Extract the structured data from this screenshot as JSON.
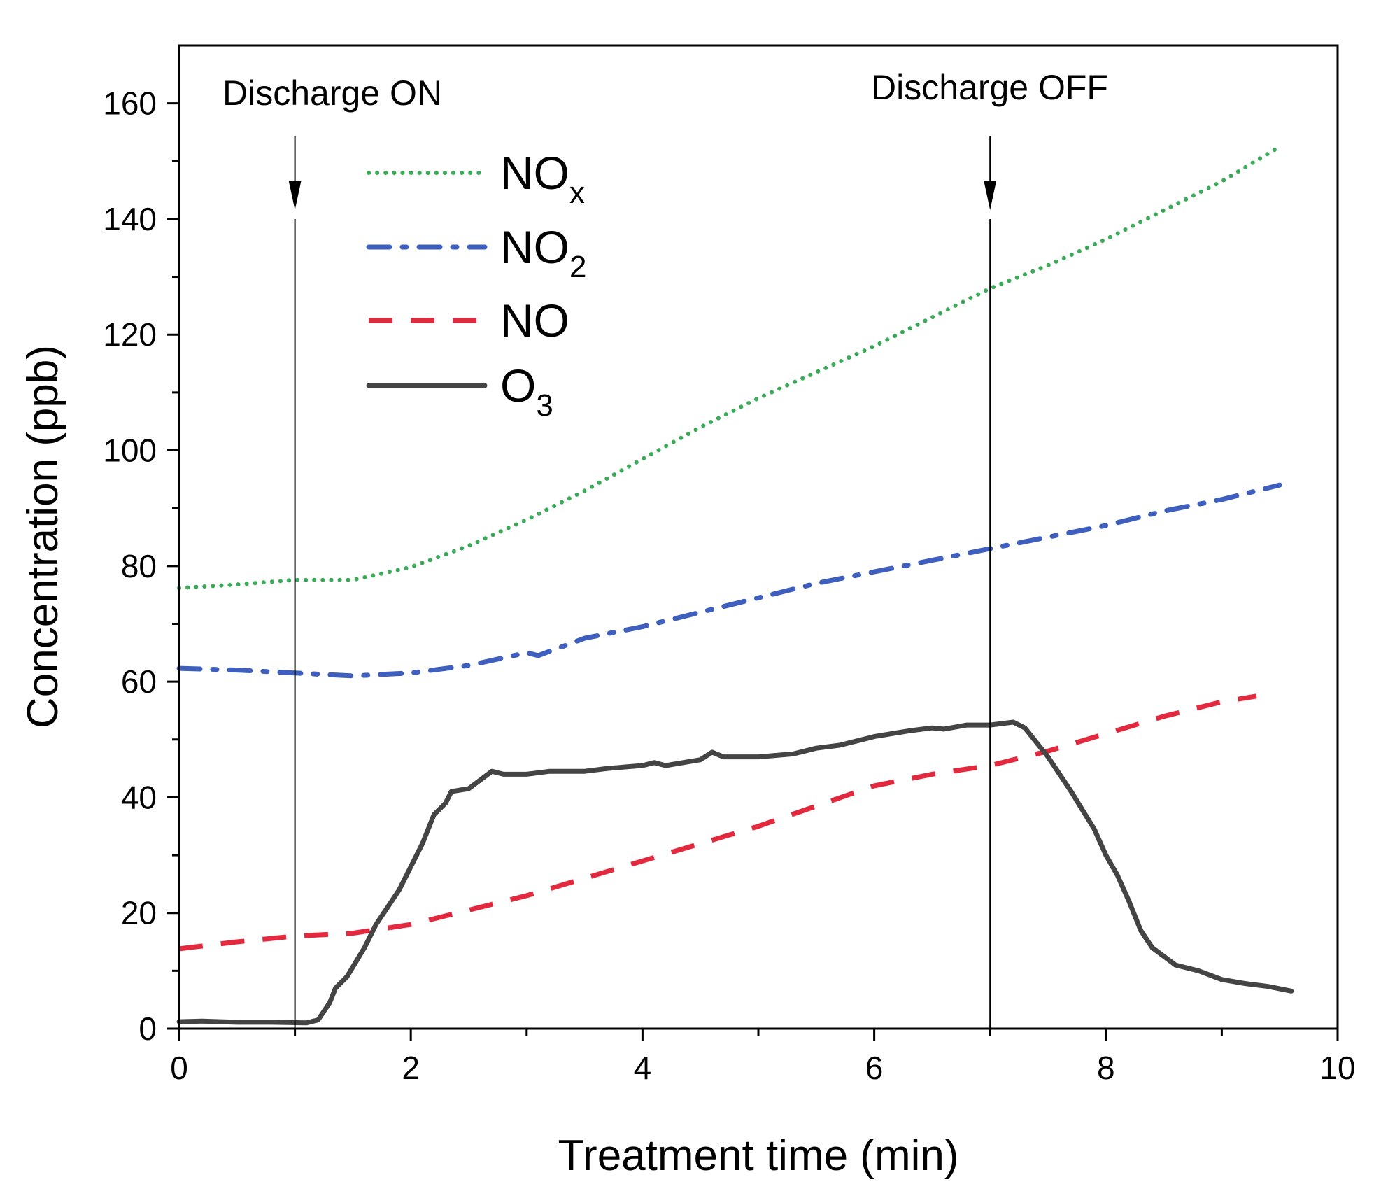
{
  "chart_data": {
    "type": "line",
    "title": "",
    "xlabel": "Treatment time (min)",
    "ylabel": "Concentration (ppb)",
    "xlim": [
      0,
      10
    ],
    "ylim": [
      0,
      170
    ],
    "xticks": [
      0,
      2,
      4,
      6,
      8,
      10
    ],
    "yticks": [
      0,
      20,
      40,
      60,
      80,
      100,
      120,
      140,
      160
    ],
    "grid": false,
    "legend_position": "top-left",
    "annotations": [
      {
        "text": "Discharge ON",
        "x": 1
      },
      {
        "text": "Discharge OFF",
        "x": 7
      }
    ],
    "series": [
      {
        "name": "NOx",
        "base": "NO",
        "sub": "x",
        "color": "#3aaa58",
        "style": "dotted",
        "points": [
          [
            0,
            76.2
          ],
          [
            0.5,
            76.8
          ],
          [
            1,
            77.6
          ],
          [
            1.5,
            77.6
          ],
          [
            2,
            79.8
          ],
          [
            2.5,
            83.5
          ],
          [
            3,
            88
          ],
          [
            3.5,
            93
          ],
          [
            4,
            98.5
          ],
          [
            4.5,
            104
          ],
          [
            5,
            109
          ],
          [
            5.5,
            113.5
          ],
          [
            6,
            118
          ],
          [
            6.5,
            123
          ],
          [
            7,
            128
          ],
          [
            7.5,
            132
          ],
          [
            8,
            136.5
          ],
          [
            8.5,
            141.5
          ],
          [
            9,
            146.5
          ],
          [
            9.5,
            152.5
          ]
        ]
      },
      {
        "name": "NO2",
        "base": "NO",
        "sub": "2",
        "color": "#3f5fbf",
        "style": "dashdot",
        "points": [
          [
            0,
            62.3
          ],
          [
            0.5,
            62
          ],
          [
            1,
            61.5
          ],
          [
            1.5,
            61
          ],
          [
            2,
            61.5
          ],
          [
            2.5,
            62.8
          ],
          [
            3,
            65
          ],
          [
            3.1,
            64.5
          ],
          [
            3.5,
            67.5
          ],
          [
            4,
            69.5
          ],
          [
            4.5,
            72
          ],
          [
            5,
            74.5
          ],
          [
            5.5,
            77
          ],
          [
            6,
            79
          ],
          [
            6.5,
            81
          ],
          [
            7,
            83
          ],
          [
            7.5,
            85
          ],
          [
            8,
            87
          ],
          [
            8.5,
            89.5
          ],
          [
            9,
            91.5
          ],
          [
            9.5,
            94
          ]
        ]
      },
      {
        "name": "NO",
        "base": "NO",
        "sub": "",
        "color": "#e3293d",
        "style": "dashed",
        "points": [
          [
            0,
            13.8
          ],
          [
            0.5,
            15
          ],
          [
            1,
            16
          ],
          [
            1.5,
            16.5
          ],
          [
            2,
            18
          ],
          [
            2.5,
            20.5
          ],
          [
            3,
            23
          ],
          [
            3.5,
            26
          ],
          [
            4,
            29
          ],
          [
            4.5,
            32
          ],
          [
            5,
            35
          ],
          [
            5.5,
            38.5
          ],
          [
            6,
            42
          ],
          [
            6.5,
            44
          ],
          [
            7,
            45.5
          ],
          [
            7.5,
            48
          ],
          [
            8,
            51
          ],
          [
            8.5,
            54
          ],
          [
            9,
            56.5
          ],
          [
            9.3,
            57.5
          ]
        ]
      },
      {
        "name": "O3",
        "base": "O",
        "sub": "3",
        "color": "#444444",
        "style": "solid",
        "points": [
          [
            0,
            1.2
          ],
          [
            0.2,
            1.3
          ],
          [
            0.5,
            1.1
          ],
          [
            0.8,
            1.1
          ],
          [
            1.1,
            1
          ],
          [
            1.2,
            1.5
          ],
          [
            1.3,
            4.5
          ],
          [
            1.35,
            7
          ],
          [
            1.45,
            9
          ],
          [
            1.6,
            14
          ],
          [
            1.7,
            18
          ],
          [
            1.8,
            21
          ],
          [
            1.9,
            24
          ],
          [
            2,
            28
          ],
          [
            2.1,
            32
          ],
          [
            2.2,
            37
          ],
          [
            2.3,
            39
          ],
          [
            2.35,
            41
          ],
          [
            2.5,
            41.5
          ],
          [
            2.6,
            43
          ],
          [
            2.7,
            44.5
          ],
          [
            2.8,
            44
          ],
          [
            3,
            44
          ],
          [
            3.2,
            44.5
          ],
          [
            3.5,
            44.5
          ],
          [
            3.7,
            45
          ],
          [
            4,
            45.5
          ],
          [
            4.1,
            46
          ],
          [
            4.2,
            45.5
          ],
          [
            4.5,
            46.5
          ],
          [
            4.6,
            47.8
          ],
          [
            4.7,
            47
          ],
          [
            5,
            47
          ],
          [
            5.3,
            47.5
          ],
          [
            5.5,
            48.5
          ],
          [
            5.7,
            49
          ],
          [
            5.9,
            50
          ],
          [
            6,
            50.5
          ],
          [
            6.3,
            51.5
          ],
          [
            6.5,
            52
          ],
          [
            6.6,
            51.8
          ],
          [
            6.8,
            52.5
          ],
          [
            7,
            52.5
          ],
          [
            7.2,
            53
          ],
          [
            7.3,
            52
          ],
          [
            7.5,
            47
          ],
          [
            7.7,
            41
          ],
          [
            7.9,
            34.5
          ],
          [
            8,
            30
          ],
          [
            8.1,
            26.5
          ],
          [
            8.2,
            22
          ],
          [
            8.3,
            17
          ],
          [
            8.4,
            14
          ],
          [
            8.5,
            12.5
          ],
          [
            8.6,
            11
          ],
          [
            8.8,
            10
          ],
          [
            9,
            8.5
          ],
          [
            9.2,
            7.8
          ],
          [
            9.4,
            7.3
          ],
          [
            9.6,
            6.5
          ]
        ]
      }
    ]
  }
}
